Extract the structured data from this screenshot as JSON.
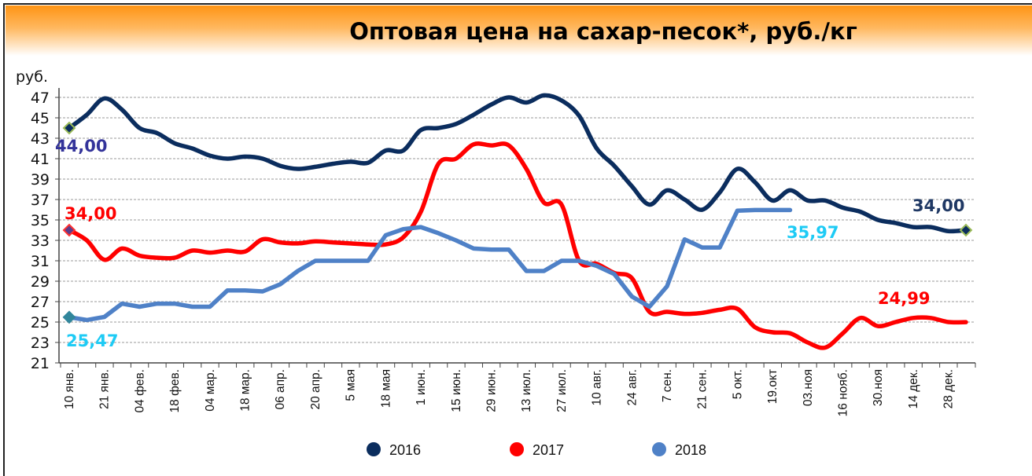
{
  "header": {
    "title": "Оптовая цена на сахар-песок*, руб./кг"
  },
  "chart_data": {
    "type": "line",
    "title": "Оптовая цена на сахар-песок*, руб./кг",
    "ylabel": "руб.",
    "xlabel": "",
    "ylim": [
      21,
      47
    ],
    "yticks": [
      "47",
      "45",
      "43",
      "41",
      "39",
      "37",
      "35",
      "33",
      "31",
      "29",
      "27",
      "25",
      "23",
      "21"
    ],
    "ytick_values": [
      47,
      45,
      43,
      41,
      39,
      37,
      35,
      33,
      31,
      29,
      27,
      25,
      23,
      21
    ],
    "grid": true,
    "legend_position": "bottom",
    "x_points": 52,
    "xtick_labels": [
      "10 янв.",
      "21 янв.",
      "04 фев.",
      "18 фев.",
      "04 мар.",
      "18 мар.",
      "06 апр.",
      "20 апр.",
      "5 мая",
      "18 мая",
      "1 июн.",
      "15 июн.",
      "29 июн.",
      "13 июл.",
      "27 июл.",
      "10 авг.",
      "24 авг.",
      "7 сен.",
      "21 сен.",
      "5 окт.",
      "19.окт",
      "03.ноя",
      "16 нояб.",
      "30.ноя",
      "14 дек.",
      "28 дек."
    ],
    "series": [
      {
        "name": "2016",
        "color": "#0b2d5e",
        "values": [
          44,
          45.3,
          46.9,
          45.8,
          44.0,
          43.5,
          42.5,
          42.0,
          41.3,
          41.0,
          41.2,
          41.0,
          40.3,
          40.0,
          40.2,
          40.5,
          40.7,
          40.6,
          41.8,
          41.8,
          43.8,
          44.0,
          44.4,
          45.3,
          46.3,
          47.0,
          46.5,
          47.2,
          46.7,
          45.2,
          42.0,
          40.3,
          38.3,
          36.5,
          37.9,
          37.0,
          36.0,
          37.7,
          40.0,
          38.7,
          36.9,
          37.9,
          36.9,
          36.9,
          36.2,
          35.8,
          35.0,
          34.7,
          34.3,
          34.3,
          33.9,
          34.0
        ]
      },
      {
        "name": "2017",
        "color": "#ff0000",
        "values": [
          34,
          33,
          31.1,
          32.2,
          31.5,
          31.3,
          31.3,
          32.0,
          31.8,
          32.0,
          31.9,
          33.1,
          32.8,
          32.7,
          32.9,
          32.8,
          32.7,
          32.6,
          32.6,
          33.3,
          35.8,
          40.5,
          41.0,
          42.4,
          42.3,
          42.3,
          40.0,
          36.7,
          36.5,
          31.0,
          30.7,
          29.8,
          29.3,
          26.0,
          26.0,
          25.8,
          25.9,
          26.2,
          26.3,
          24.5,
          24.0,
          23.9,
          23.0,
          22.5,
          23.9,
          25.4,
          24.6,
          25.0,
          25.4,
          25.4,
          25.0,
          24.99
        ]
      },
      {
        "name": "2018",
        "color": "#4f81c7",
        "values": [
          25.47,
          25.2,
          25.5,
          26.8,
          26.5,
          26.8,
          26.8,
          26.5,
          26.5,
          28.1,
          28.1,
          28.0,
          28.7,
          30.0,
          31.0,
          31.0,
          31.0,
          31.0,
          33.5,
          34.1,
          34.3,
          33.7,
          33.0,
          32.2,
          32.1,
          32.1,
          30.0,
          30.0,
          31.0,
          31.0,
          30.5,
          29.7,
          27.5,
          26.5,
          28.5,
          33.1,
          32.3,
          32.3,
          35.9,
          35.97,
          35.97,
          35.97
        ]
      }
    ],
    "annotations": [
      {
        "text": "44,00",
        "series": "2016",
        "point": "first",
        "color": "#33339a"
      },
      {
        "text": "34,00",
        "series": "2016",
        "point": "last",
        "color": "#1f3864"
      },
      {
        "text": "34,00",
        "series": "2017",
        "point": "first",
        "color": "#ff0000"
      },
      {
        "text": "24,99",
        "series": "2017",
        "point": "last",
        "color": "#ff0000"
      },
      {
        "text": "25,47",
        "series": "2018",
        "point": "first",
        "color": "#1ecbf5"
      },
      {
        "text": "35,97",
        "series": "2018",
        "point": "last",
        "color": "#1ecbf5"
      }
    ]
  }
}
